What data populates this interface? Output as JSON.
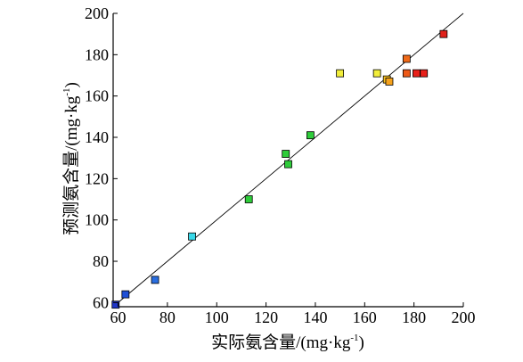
{
  "chart_data": {
    "type": "scatter",
    "title": "",
    "xlabel": "实际氨含量/(mg·kg⁻¹)",
    "ylabel": "预测氨含量/(mg·kg⁻¹)",
    "xlabel_main": "实际氨含量/(mg·kg",
    "xlabel_sup": "-1",
    "xlabel_tail": ")",
    "ylabel_main": "预测氨含量/(mg·kg",
    "ylabel_sup": "-1",
    "ylabel_tail": ")",
    "xlim": [
      58,
      200
    ],
    "ylim": [
      58,
      200
    ],
    "xticks": [
      "60",
      "80",
      "100",
      "120",
      "140",
      "160",
      "180",
      "200"
    ],
    "yticks": [
      "60",
      "80",
      "100",
      "120",
      "140",
      "160",
      "180",
      "200"
    ],
    "grid": false,
    "legend": "none",
    "reference_line": {
      "from": [
        58,
        58
      ],
      "to": [
        200,
        200
      ]
    },
    "points": [
      {
        "x": 59,
        "y": 59,
        "color": "#1f35c9"
      },
      {
        "x": 63,
        "y": 64,
        "color": "#1f4fd6"
      },
      {
        "x": 75,
        "y": 71,
        "color": "#2a6ee0"
      },
      {
        "x": 90,
        "y": 92,
        "color": "#38d8e8"
      },
      {
        "x": 113,
        "y": 110,
        "color": "#2ecc3a"
      },
      {
        "x": 128,
        "y": 132,
        "color": "#2ecc3a"
      },
      {
        "x": 129,
        "y": 127,
        "color": "#2ecc3a"
      },
      {
        "x": 138,
        "y": 141,
        "color": "#2ecc3a"
      },
      {
        "x": 150,
        "y": 171,
        "color": "#f2ee3a"
      },
      {
        "x": 165,
        "y": 171,
        "color": "#f2ee3a"
      },
      {
        "x": 169,
        "y": 168,
        "color": "#f6c020"
      },
      {
        "x": 170,
        "y": 167,
        "color": "#f6a21c"
      },
      {
        "x": 177,
        "y": 178,
        "color": "#f06a18"
      },
      {
        "x": 177,
        "y": 171,
        "color": "#ee5a18"
      },
      {
        "x": 181,
        "y": 171,
        "color": "#e8201a"
      },
      {
        "x": 184,
        "y": 171,
        "color": "#e8201a"
      },
      {
        "x": 192,
        "y": 190,
        "color": "#e0201a"
      }
    ]
  }
}
